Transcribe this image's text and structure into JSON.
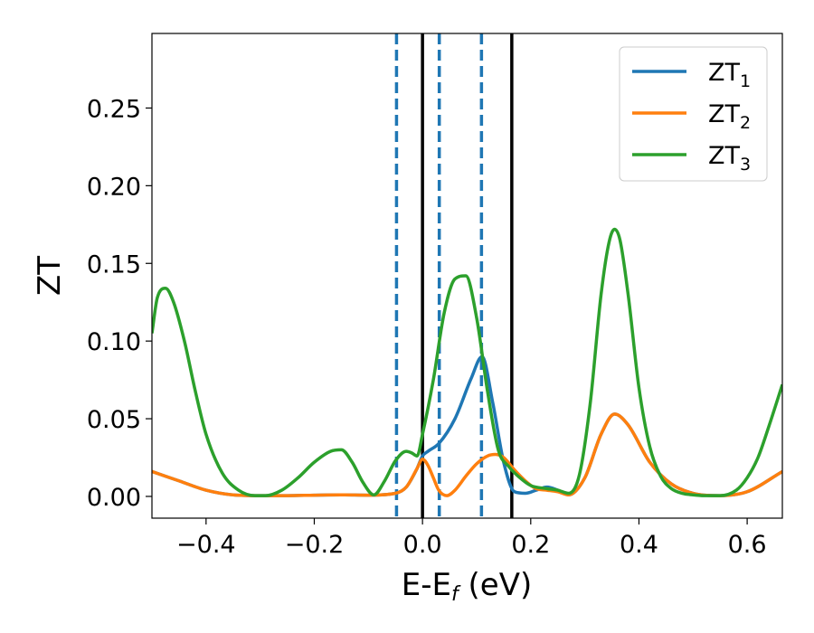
{
  "chart_data": {
    "type": "line",
    "xlabel": {
      "main": "E-E",
      "sub": "f",
      "suffix": " (eV)"
    },
    "ylabel": "ZT",
    "xlim": [
      -0.5,
      0.665
    ],
    "ylim": [
      -0.014,
      0.298
    ],
    "x_ticks": [
      -0.4,
      -0.2,
      0.0,
      0.2,
      0.4,
      0.6
    ],
    "x_tick_labels": [
      "−0.4",
      "−0.2",
      "0.0",
      "0.2",
      "0.4",
      "0.6"
    ],
    "y_ticks": [
      0.0,
      0.05,
      0.1,
      0.15,
      0.2,
      0.25
    ],
    "y_tick_labels": [
      "0.00",
      "0.05",
      "0.10",
      "0.15",
      "0.20",
      "0.25"
    ],
    "grid": false,
    "legend_position": "top-right",
    "vlines": [
      {
        "x": -0.048,
        "style": "dashed",
        "color": "#1f77b4"
      },
      {
        "x": 0.031,
        "style": "dashed",
        "color": "#1f77b4"
      },
      {
        "x": 0.109,
        "style": "dashed",
        "color": "#1f77b4"
      },
      {
        "x": 0.0,
        "style": "solid",
        "color": "#000000"
      },
      {
        "x": 0.165,
        "style": "solid",
        "color": "#000000"
      }
    ],
    "series": [
      {
        "name": "ZT",
        "sub": "1",
        "color": "#1f77b4",
        "x": [
          -0.5,
          -0.45,
          -0.4,
          -0.35,
          -0.3,
          -0.25,
          -0.2,
          -0.15,
          -0.1,
          -0.05,
          -0.03,
          -0.01,
          0.0,
          0.01,
          0.03,
          0.06,
          0.09,
          0.11,
          0.13,
          0.15,
          0.17,
          0.19,
          0.21,
          0.23,
          0.25,
          0.27,
          0.3,
          0.33,
          0.355,
          0.38,
          0.42,
          0.46,
          0.5,
          0.55,
          0.6,
          0.665
        ],
        "y": [
          0.016,
          0.01,
          0.004,
          0.001,
          0.0005,
          0.0005,
          0.0008,
          0.001,
          0.0008,
          0.002,
          0.006,
          0.018,
          0.026,
          0.029,
          0.034,
          0.05,
          0.076,
          0.09,
          0.06,
          0.022,
          0.003,
          0.002,
          0.004,
          0.006,
          0.004,
          0.001,
          0.012,
          0.04,
          0.053,
          0.046,
          0.022,
          0.008,
          0.002,
          0.0005,
          0.003,
          0.016
        ]
      },
      {
        "name": "ZT",
        "sub": "2",
        "color": "#ff7f0e",
        "x": [
          -0.5,
          -0.45,
          -0.4,
          -0.35,
          -0.3,
          -0.25,
          -0.2,
          -0.15,
          -0.1,
          -0.05,
          -0.03,
          -0.01,
          0.0,
          0.01,
          0.02,
          0.03,
          0.045,
          0.06,
          0.08,
          0.1,
          0.12,
          0.135,
          0.15,
          0.17,
          0.19,
          0.21,
          0.23,
          0.25,
          0.27,
          0.3,
          0.33,
          0.355,
          0.38,
          0.42,
          0.46,
          0.5,
          0.55,
          0.6,
          0.665
        ],
        "y": [
          0.016,
          0.01,
          0.004,
          0.001,
          0.0005,
          0.0005,
          0.0008,
          0.001,
          0.0008,
          0.002,
          0.006,
          0.018,
          0.024,
          0.02,
          0.012,
          0.004,
          0.0005,
          0.004,
          0.013,
          0.021,
          0.026,
          0.027,
          0.025,
          0.017,
          0.01,
          0.005,
          0.004,
          0.003,
          0.001,
          0.012,
          0.04,
          0.053,
          0.046,
          0.022,
          0.008,
          0.002,
          0.0005,
          0.003,
          0.016
        ]
      },
      {
        "name": "ZT",
        "sub": "3",
        "color": "#2ca02c",
        "x": [
          -0.5,
          -0.49,
          -0.475,
          -0.46,
          -0.44,
          -0.42,
          -0.4,
          -0.37,
          -0.34,
          -0.31,
          -0.29,
          -0.26,
          -0.23,
          -0.2,
          -0.17,
          -0.15,
          -0.13,
          -0.11,
          -0.09,
          -0.07,
          -0.05,
          -0.03,
          -0.02,
          -0.01,
          0.0,
          0.02,
          0.04,
          0.06,
          0.08,
          0.1,
          0.12,
          0.14,
          0.16,
          0.18,
          0.2,
          0.23,
          0.25,
          0.27,
          0.29,
          0.31,
          0.33,
          0.345,
          0.355,
          0.365,
          0.38,
          0.4,
          0.42,
          0.44,
          0.46,
          0.48,
          0.5,
          0.52,
          0.55,
          0.58,
          0.6,
          0.62,
          0.64,
          0.665
        ],
        "y": [
          0.105,
          0.128,
          0.134,
          0.125,
          0.1,
          0.068,
          0.04,
          0.015,
          0.004,
          0.0005,
          0.0005,
          0.004,
          0.012,
          0.022,
          0.029,
          0.03,
          0.022,
          0.009,
          0.001,
          0.01,
          0.023,
          0.029,
          0.028,
          0.026,
          0.04,
          0.075,
          0.118,
          0.14,
          0.142,
          0.115,
          0.068,
          0.03,
          0.019,
          0.012,
          0.007,
          0.005,
          0.004,
          0.002,
          0.014,
          0.06,
          0.13,
          0.164,
          0.172,
          0.165,
          0.13,
          0.07,
          0.032,
          0.013,
          0.005,
          0.002,
          0.001,
          0.0005,
          0.0005,
          0.004,
          0.012,
          0.025,
          0.045,
          0.072
        ]
      }
    ]
  }
}
